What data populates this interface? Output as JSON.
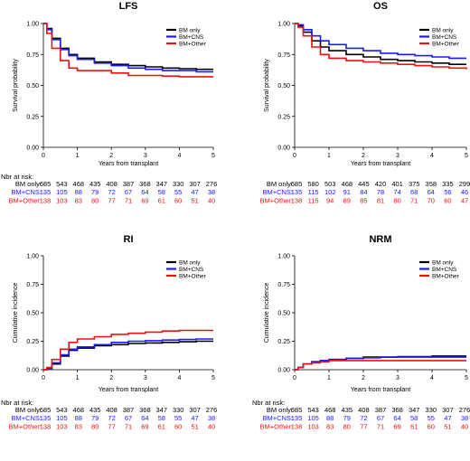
{
  "colors": {
    "bm_only": "#000000",
    "bm_cns": "#1a1aff",
    "bm_other": "#ee1111"
  },
  "chart_data": [
    {
      "id": "lfs",
      "type": "line",
      "title": "LFS",
      "xlabel": "Years from transplant",
      "ylabel": "Survival probability",
      "xlim": [
        0,
        5
      ],
      "ylim": [
        0,
        1
      ],
      "xticks": [
        "0",
        "1",
        "2",
        "3",
        "4",
        "5"
      ],
      "yticks": [
        "0.00",
        "0.25",
        "0.50",
        "0.75",
        "1.00"
      ],
      "legend": "top-right",
      "series": [
        {
          "name": "BM only",
          "color": "#000000",
          "x": [
            0,
            0.1,
            0.25,
            0.5,
            0.75,
            1,
            1.5,
            2,
            2.5,
            3,
            3.5,
            4,
            4.5,
            5
          ],
          "y": [
            1,
            0.96,
            0.88,
            0.8,
            0.75,
            0.72,
            0.69,
            0.67,
            0.66,
            0.65,
            0.64,
            0.635,
            0.63,
            0.63
          ]
        },
        {
          "name": "BM+CNS",
          "color": "#1a1aff",
          "x": [
            0,
            0.1,
            0.25,
            0.5,
            0.75,
            1,
            1.5,
            2,
            2.5,
            3,
            3.5,
            4,
            4.5,
            5
          ],
          "y": [
            1,
            0.95,
            0.87,
            0.79,
            0.74,
            0.71,
            0.68,
            0.66,
            0.64,
            0.63,
            0.62,
            0.62,
            0.61,
            0.61
          ]
        },
        {
          "name": "BM+Other",
          "color": "#ee1111",
          "x": [
            0,
            0.1,
            0.25,
            0.5,
            0.75,
            1,
            1.5,
            2,
            2.5,
            3,
            3.5,
            4,
            4.5,
            5
          ],
          "y": [
            1,
            0.92,
            0.8,
            0.7,
            0.64,
            0.62,
            0.62,
            0.6,
            0.58,
            0.58,
            0.575,
            0.57,
            0.57,
            0.57
          ]
        }
      ]
    },
    {
      "id": "os",
      "type": "line",
      "title": "OS",
      "xlabel": "Years from transplant",
      "ylabel": "Survival probability",
      "xlim": [
        0,
        5
      ],
      "ylim": [
        0,
        1
      ],
      "xticks": [
        "0",
        "1",
        "2",
        "3",
        "4",
        "5"
      ],
      "yticks": [
        "0.00",
        "0.25",
        "0.50",
        "0.75",
        "1.00"
      ],
      "legend": "top-right",
      "series": [
        {
          "name": "BM only",
          "color": "#000000",
          "x": [
            0,
            0.1,
            0.25,
            0.5,
            0.75,
            1,
            1.5,
            2,
            2.5,
            3,
            3.5,
            4,
            4.5,
            5
          ],
          "y": [
            1,
            0.98,
            0.93,
            0.86,
            0.81,
            0.78,
            0.75,
            0.73,
            0.71,
            0.7,
            0.69,
            0.68,
            0.67,
            0.67
          ]
        },
        {
          "name": "BM+CNS",
          "color": "#1a1aff",
          "x": [
            0,
            0.1,
            0.25,
            0.5,
            0.75,
            1,
            1.5,
            2,
            2.5,
            3,
            3.5,
            4,
            4.5,
            5
          ],
          "y": [
            1,
            0.99,
            0.95,
            0.9,
            0.86,
            0.83,
            0.8,
            0.78,
            0.76,
            0.75,
            0.74,
            0.73,
            0.72,
            0.72
          ]
        },
        {
          "name": "BM+Other",
          "color": "#ee1111",
          "x": [
            0,
            0.1,
            0.25,
            0.5,
            0.75,
            1,
            1.5,
            2,
            2.5,
            3,
            3.5,
            4,
            4.5,
            5
          ],
          "y": [
            1,
            0.97,
            0.9,
            0.81,
            0.75,
            0.72,
            0.7,
            0.69,
            0.68,
            0.67,
            0.66,
            0.65,
            0.64,
            0.63
          ]
        }
      ]
    },
    {
      "id": "ri",
      "type": "line",
      "title": "RI",
      "xlabel": "Years from transplant",
      "ylabel": "Cumulative incidence",
      "xlim": [
        0,
        5
      ],
      "ylim": [
        0,
        1
      ],
      "xticks": [
        "0",
        "1",
        "2",
        "3",
        "4",
        "5"
      ],
      "yticks": [
        "0.00",
        "0.25",
        "0.50",
        "0.75",
        "1.00"
      ],
      "legend": "top-right",
      "series": [
        {
          "name": "BM only",
          "color": "#000000",
          "x": [
            0,
            0.1,
            0.25,
            0.5,
            0.75,
            1,
            1.5,
            2,
            2.5,
            3,
            3.5,
            4,
            4.5,
            5
          ],
          "y": [
            0,
            0.01,
            0.05,
            0.12,
            0.17,
            0.19,
            0.21,
            0.22,
            0.23,
            0.235,
            0.24,
            0.245,
            0.25,
            0.25
          ]
        },
        {
          "name": "BM+CNS",
          "color": "#1a1aff",
          "x": [
            0,
            0.1,
            0.25,
            0.5,
            0.75,
            1,
            1.5,
            2,
            2.5,
            3,
            3.5,
            4,
            4.5,
            5
          ],
          "y": [
            0,
            0.01,
            0.06,
            0.13,
            0.18,
            0.2,
            0.22,
            0.24,
            0.25,
            0.255,
            0.26,
            0.265,
            0.27,
            0.27
          ]
        },
        {
          "name": "BM+Other",
          "color": "#ee1111",
          "x": [
            0,
            0.1,
            0.25,
            0.5,
            0.75,
            1,
            1.5,
            2,
            2.5,
            3,
            3.5,
            4,
            4.5,
            5
          ],
          "y": [
            0,
            0.02,
            0.09,
            0.18,
            0.24,
            0.27,
            0.29,
            0.31,
            0.32,
            0.33,
            0.34,
            0.345,
            0.345,
            0.345
          ]
        }
      ]
    },
    {
      "id": "nrm",
      "type": "line",
      "title": "NRM",
      "xlabel": "Years from transplant",
      "ylabel": "Cumulative incidence",
      "xlim": [
        0,
        5
      ],
      "ylim": [
        0,
        1
      ],
      "xticks": [
        "0",
        "1",
        "2",
        "3",
        "4",
        "5"
      ],
      "yticks": [
        "0.00",
        "0.25",
        "0.50",
        "0.75",
        "1.00"
      ],
      "legend": "top-right",
      "series": [
        {
          "name": "BM only",
          "color": "#000000",
          "x": [
            0,
            0.1,
            0.25,
            0.5,
            0.75,
            1,
            1.5,
            2,
            2.5,
            3,
            3.5,
            4,
            4.5,
            5
          ],
          "y": [
            0,
            0.02,
            0.05,
            0.07,
            0.08,
            0.09,
            0.1,
            0.11,
            0.11,
            0.115,
            0.115,
            0.12,
            0.12,
            0.12
          ]
        },
        {
          "name": "BM+CNS",
          "color": "#1a1aff",
          "x": [
            0,
            0.1,
            0.25,
            0.5,
            0.75,
            1,
            1.5,
            2,
            2.5,
            3,
            3.5,
            4,
            4.5,
            5
          ],
          "y": [
            0,
            0.02,
            0.05,
            0.07,
            0.08,
            0.09,
            0.1,
            0.105,
            0.11,
            0.11,
            0.11,
            0.11,
            0.11,
            0.11
          ]
        },
        {
          "name": "BM+Other",
          "color": "#ee1111",
          "x": [
            0,
            0.1,
            0.25,
            0.5,
            0.75,
            1,
            1.5,
            2,
            2.5,
            3,
            3.5,
            4,
            4.5,
            5
          ],
          "y": [
            0,
            0.02,
            0.05,
            0.06,
            0.07,
            0.08,
            0.08,
            0.08,
            0.08,
            0.08,
            0.08,
            0.08,
            0.08,
            0.08
          ]
        }
      ]
    }
  ],
  "risk_tables": [
    {
      "chart": "lfs",
      "header": "Nbr at risk:",
      "rows": [
        {
          "label": "BM only:",
          "color": "#000000",
          "values": [
            "685",
            "543",
            "468",
            "435",
            "408",
            "387",
            "368",
            "347",
            "330",
            "307",
            "276"
          ]
        },
        {
          "label": "BM+CNS:",
          "color": "#1a1aff",
          "values": [
            "135",
            "105",
            "88",
            "79",
            "72",
            "67",
            "64",
            "58",
            "55",
            "47",
            "38"
          ]
        },
        {
          "label": "BM+Other:",
          "color": "#ee1111",
          "values": [
            "138",
            "103",
            "83",
            "80",
            "77",
            "71",
            "69",
            "61",
            "60",
            "51",
            "40"
          ]
        }
      ]
    },
    {
      "chart": "os",
      "header": "",
      "rows": [
        {
          "label": "BM only:",
          "color": "#000000",
          "values": [
            "685",
            "580",
            "503",
            "468",
            "445",
            "420",
            "401",
            "375",
            "358",
            "335",
            "299"
          ]
        },
        {
          "label": "BM+CNS:",
          "color": "#1a1aff",
          "values": [
            "135",
            "115",
            "102",
            "91",
            "84",
            "78",
            "74",
            "68",
            "64",
            "56",
            "46"
          ]
        },
        {
          "label": "BM+Other:",
          "color": "#ee1111",
          "values": [
            "138",
            "115",
            "94",
            "89",
            "85",
            "81",
            "80",
            "71",
            "70",
            "60",
            "47"
          ]
        }
      ]
    },
    {
      "chart": "ri",
      "header": "",
      "rows": []
    },
    {
      "chart": "nrm",
      "header": "Nbr at risk:",
      "rows": [
        {
          "label": "BM only:",
          "color": "#000000",
          "values": [
            "685",
            "543",
            "468",
            "435",
            "408",
            "387",
            "368",
            "347",
            "330",
            "307",
            "276"
          ]
        },
        {
          "label": "BM+CNS:",
          "color": "#1a1aff",
          "values": [
            "135",
            "105",
            "88",
            "79",
            "72",
            "67",
            "64",
            "58",
            "55",
            "47",
            "38"
          ]
        },
        {
          "label": "BM+Other:",
          "color": "#ee1111",
          "values": [
            "138",
            "103",
            "83",
            "80",
            "77",
            "71",
            "69",
            "61",
            "60",
            "51",
            "40"
          ]
        }
      ]
    }
  ],
  "bottom_left_table": {
    "header": "Nbr at risk:",
    "rows": [
      {
        "label": "BM only:",
        "color": "#000000",
        "values": [
          "685",
          "543",
          "468",
          "435",
          "408",
          "387",
          "368",
          "347",
          "330",
          "307",
          "276"
        ]
      },
      {
        "label": "BM+CNS:",
        "color": "#1a1aff",
        "values": [
          "135",
          "105",
          "88",
          "79",
          "72",
          "67",
          "64",
          "58",
          "55",
          "47",
          "38"
        ]
      },
      {
        "label": "BM+Other:",
        "color": "#ee1111",
        "values": [
          "138",
          "103",
          "83",
          "80",
          "77",
          "71",
          "69",
          "61",
          "60",
          "51",
          "40"
        ]
      }
    ]
  }
}
